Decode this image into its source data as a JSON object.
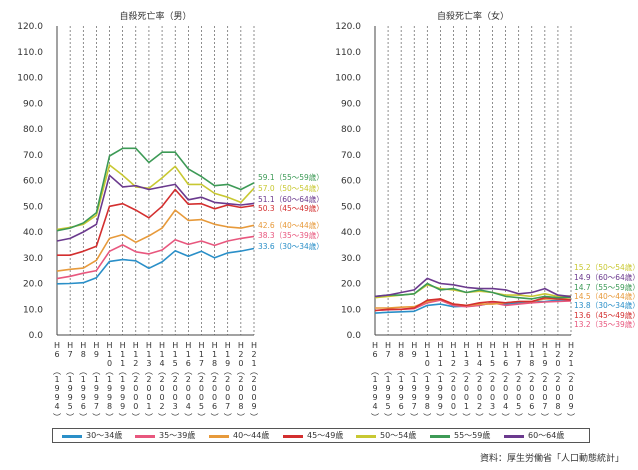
{
  "chart_data": [
    {
      "type": "line",
      "title": "自殺死亡率（男）",
      "ylim": [
        0,
        120
      ],
      "yticks": [
        "0.0",
        "10.0",
        "20.0",
        "30.0",
        "40.0",
        "50.0",
        "60.0",
        "70.0",
        "80.0",
        "90.0",
        "100.0",
        "110.0",
        "120.0"
      ],
      "grid": "vertical dashed",
      "x_labels": [
        {
          "era": "H",
          "yr": "6",
          "year": "1994"
        },
        {
          "era": "H",
          "yr": "7",
          "year": "1995"
        },
        {
          "era": "H",
          "yr": "8",
          "year": "1996"
        },
        {
          "era": "H",
          "yr": "9",
          "year": "1997"
        },
        {
          "era": "H",
          "yr": "10",
          "year": "1998"
        },
        {
          "era": "H",
          "yr": "11",
          "year": "1999"
        },
        {
          "era": "H",
          "yr": "12",
          "year": "2000"
        },
        {
          "era": "H",
          "yr": "13",
          "year": "2001"
        },
        {
          "era": "H",
          "yr": "14",
          "year": "2002"
        },
        {
          "era": "H",
          "yr": "15",
          "year": "2003"
        },
        {
          "era": "H",
          "yr": "16",
          "year": "2004"
        },
        {
          "era": "H",
          "yr": "17",
          "year": "2005"
        },
        {
          "era": "H",
          "yr": "18",
          "year": "2006"
        },
        {
          "era": "H",
          "yr": "19",
          "year": "2007"
        },
        {
          "era": "H",
          "yr": "20",
          "year": "2008"
        },
        {
          "era": "H",
          "yr": "21",
          "year": "2009"
        }
      ],
      "series": [
        {
          "name": "30～34歳",
          "values": [
            19.9,
            20.0,
            20.3,
            22.2,
            28.6,
            29.3,
            28.8,
            25.9,
            28.4,
            32.7,
            30.6,
            32.5,
            30.0,
            31.9,
            32.6,
            33.6
          ],
          "end_label": "33.6（30～34歳）"
        },
        {
          "name": "35～39歳",
          "values": [
            21.9,
            22.8,
            24.0,
            25.0,
            32.5,
            35.0,
            32.3,
            31.5,
            33.0,
            37.0,
            35.2,
            36.5,
            34.8,
            36.5,
            37.5,
            38.3
          ],
          "end_label": "38.3（35～39歳）"
        },
        {
          "name": "40～44歳",
          "values": [
            24.8,
            25.5,
            26.0,
            29.0,
            37.5,
            39.0,
            36.0,
            38.5,
            41.5,
            48.5,
            44.5,
            44.8,
            43.0,
            42.0,
            41.5,
            42.6
          ],
          "end_label": "42.6（40～44歳）"
        },
        {
          "name": "45～49歳",
          "values": [
            31.0,
            31.0,
            32.5,
            34.5,
            50.0,
            51.0,
            48.5,
            45.5,
            50.0,
            56.5,
            50.8,
            51.0,
            49.0,
            50.5,
            49.5,
            50.3
          ],
          "end_label": "50.3（45～49歳）"
        },
        {
          "name": "50～54歳",
          "values": [
            41.0,
            41.8,
            43.0,
            46.5,
            66.0,
            62.0,
            57.5,
            57.0,
            61.0,
            65.5,
            58.5,
            58.5,
            55.0,
            53.5,
            51.5,
            57.0
          ],
          "end_label": "57.0（50～54歳）"
        },
        {
          "name": "55～59歳",
          "values": [
            40.5,
            41.5,
            43.5,
            47.5,
            69.5,
            72.5,
            72.5,
            67.0,
            71.0,
            71.0,
            64.5,
            61.5,
            58.0,
            58.5,
            56.5,
            59.1
          ],
          "end_label": "59.1（55～59歳）"
        },
        {
          "name": "60～64歳",
          "values": [
            36.5,
            37.5,
            40.0,
            43.0,
            62.0,
            57.5,
            58.0,
            56.5,
            57.5,
            58.5,
            52.5,
            53.5,
            51.5,
            51.0,
            50.5,
            51.1
          ],
          "end_label": "51.1（60～64歳）"
        }
      ]
    },
    {
      "type": "line",
      "title": "自殺死亡率（女）",
      "ylim": [
        0,
        120
      ],
      "yticks": [
        "0.0",
        "10.0",
        "20.0",
        "30.0",
        "40.0",
        "50.0",
        "60.0",
        "70.0",
        "80.0",
        "90.0",
        "100.0",
        "110.0",
        "120.0"
      ],
      "grid": "vertical dashed",
      "x_labels": [
        {
          "era": "H",
          "yr": "6",
          "year": "1994"
        },
        {
          "era": "H",
          "yr": "7",
          "year": "1995"
        },
        {
          "era": "H",
          "yr": "8",
          "year": "1996"
        },
        {
          "era": "H",
          "yr": "9",
          "year": "1997"
        },
        {
          "era": "H",
          "yr": "10",
          "year": "1998"
        },
        {
          "era": "H",
          "yr": "11",
          "year": "1999"
        },
        {
          "era": "H",
          "yr": "12",
          "year": "2000"
        },
        {
          "era": "H",
          "yr": "13",
          "year": "2001"
        },
        {
          "era": "H",
          "yr": "14",
          "year": "2002"
        },
        {
          "era": "H",
          "yr": "15",
          "year": "2003"
        },
        {
          "era": "H",
          "yr": "16",
          "year": "2004"
        },
        {
          "era": "H",
          "yr": "17",
          "year": "2005"
        },
        {
          "era": "H",
          "yr": "18",
          "year": "2006"
        },
        {
          "era": "H",
          "yr": "19",
          "year": "2007"
        },
        {
          "era": "H",
          "yr": "20",
          "year": "2008"
        },
        {
          "era": "H",
          "yr": "21",
          "year": "2009"
        }
      ],
      "series": [
        {
          "name": "30～34歳",
          "values": [
            8.5,
            8.8,
            9.0,
            9.2,
            11.5,
            12.0,
            11.0,
            11.2,
            11.5,
            12.5,
            12.0,
            12.5,
            12.8,
            13.0,
            13.5,
            13.8
          ],
          "end_label": "13.8（30～34歳）"
        },
        {
          "name": "35～39歳",
          "values": [
            9.5,
            9.8,
            10.0,
            10.2,
            12.5,
            13.5,
            11.5,
            11.0,
            11.5,
            12.5,
            11.5,
            12.0,
            12.5,
            12.8,
            13.0,
            13.2
          ],
          "end_label": "13.2（35～39歳）"
        },
        {
          "name": "40～44歳",
          "values": [
            10.5,
            10.5,
            10.8,
            11.0,
            13.0,
            14.0,
            12.0,
            11.5,
            12.0,
            12.0,
            12.5,
            13.0,
            13.0,
            14.0,
            14.0,
            14.5
          ],
          "end_label": "14.5（40～44歳）"
        },
        {
          "name": "45～49歳",
          "values": [
            9.5,
            10.0,
            10.0,
            10.5,
            13.5,
            14.0,
            12.0,
            11.5,
            12.5,
            13.0,
            12.5,
            13.0,
            13.0,
            14.5,
            14.0,
            13.6
          ],
          "end_label": "13.6（45～49歳）"
        },
        {
          "name": "50～54歳",
          "values": [
            14.5,
            15.0,
            15.5,
            16.0,
            19.5,
            18.0,
            17.5,
            16.5,
            17.0,
            16.5,
            15.5,
            15.5,
            15.0,
            16.0,
            15.0,
            15.2
          ],
          "end_label": "15.2（50～54歳）"
        },
        {
          "name": "55～59歳",
          "values": [
            15.0,
            15.5,
            15.5,
            16.0,
            20.0,
            17.5,
            18.0,
            16.5,
            17.5,
            16.5,
            15.0,
            14.5,
            14.0,
            15.0,
            14.5,
            14.7
          ],
          "end_label": "14.7（55～59歳）"
        },
        {
          "name": "60～64歳",
          "values": [
            15.0,
            15.5,
            16.5,
            17.5,
            22.0,
            20.0,
            19.5,
            18.5,
            18.0,
            18.0,
            17.5,
            16.0,
            16.5,
            18.0,
            15.5,
            14.9
          ],
          "end_label": "14.9（60～64歳）"
        }
      ]
    }
  ],
  "colors": [
    "#2a8fc8",
    "#e8577e",
    "#e79a3b",
    "#d32f2f",
    "#c8c832",
    "#3d9a56",
    "#6b3a8e"
  ],
  "legend": [
    "30～34歳",
    "35～39歳",
    "40～44歳",
    "45～49歳",
    "50～54歳",
    "55～59歳",
    "60～64歳"
  ],
  "source": "資料：厚生労働省「人口動態統計」"
}
